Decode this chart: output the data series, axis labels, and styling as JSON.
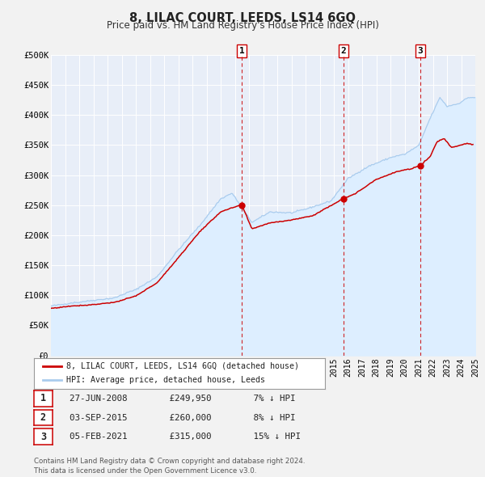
{
  "title": "8, LILAC COURT, LEEDS, LS14 6GQ",
  "subtitle": "Price paid vs. HM Land Registry's House Price Index (HPI)",
  "background_color": "#f2f2f2",
  "plot_bg_color": "#e8eef8",
  "grid_color": "#ffffff",
  "ylim": [
    0,
    500000
  ],
  "yticks": [
    0,
    50000,
    100000,
    150000,
    200000,
    250000,
    300000,
    350000,
    400000,
    450000,
    500000
  ],
  "ytick_labels": [
    "£0",
    "£50K",
    "£100K",
    "£150K",
    "£200K",
    "£250K",
    "£300K",
    "£350K",
    "£400K",
    "£450K",
    "£500K"
  ],
  "xmin": 1995,
  "xmax": 2025,
  "sale_color": "#cc0000",
  "hpi_color": "#aaccee",
  "hpi_fill_color": "#ddeeff",
  "sale_label": "8, LILAC COURT, LEEDS, LS14 6GQ (detached house)",
  "hpi_label": "HPI: Average price, detached house, Leeds",
  "transactions": [
    {
      "date_x": 2008.49,
      "price": 249950,
      "label": "1",
      "pct": "7% ↓ HPI",
      "display_date": "27-JUN-2008",
      "display_price": "£249,950"
    },
    {
      "date_x": 2015.67,
      "price": 260000,
      "label": "2",
      "pct": "8% ↓ HPI",
      "display_date": "03-SEP-2015",
      "display_price": "£260,000"
    },
    {
      "date_x": 2021.1,
      "price": 315000,
      "label": "3",
      "pct": "15% ↓ HPI",
      "display_date": "05-FEB-2021",
      "display_price": "£315,000"
    }
  ],
  "footer": "Contains HM Land Registry data © Crown copyright and database right 2024.\nThis data is licensed under the Open Government Licence v3.0.",
  "legend_box_color": "#ffffff",
  "legend_border_color": "#999999",
  "table_border_color": "#cc0000",
  "hpi_anchors_x": [
    1995.0,
    1997.0,
    1999.5,
    2001.0,
    2002.5,
    2004.0,
    2005.5,
    2007.0,
    2007.8,
    2009.2,
    2010.5,
    2012.0,
    2013.5,
    2014.8,
    2016.0,
    2017.5,
    2019.0,
    2020.0,
    2021.0,
    2021.8,
    2022.5,
    2023.0,
    2023.8,
    2024.5,
    2025.0
  ],
  "hpi_anchors_y": [
    82000,
    88000,
    95000,
    108000,
    130000,
    175000,
    215000,
    260000,
    270000,
    222000,
    240000,
    238000,
    248000,
    258000,
    295000,
    315000,
    330000,
    335000,
    350000,
    395000,
    430000,
    415000,
    420000,
    430000,
    430000
  ],
  "sale_anchors_x": [
    1995.0,
    1996.5,
    1998.0,
    1999.5,
    2001.0,
    2002.5,
    2004.0,
    2005.5,
    2007.0,
    2008.49,
    2009.2,
    2010.5,
    2012.0,
    2013.5,
    2015.67,
    2016.5,
    2018.0,
    2019.5,
    2020.5,
    2021.1,
    2021.8,
    2022.3,
    2022.8,
    2023.3,
    2023.8,
    2024.3,
    2024.8
  ],
  "sale_anchors_y": [
    78000,
    82000,
    84000,
    88000,
    98000,
    120000,
    162000,
    205000,
    238000,
    249950,
    210000,
    220000,
    225000,
    232000,
    260000,
    268000,
    292000,
    305000,
    310000,
    315000,
    330000,
    355000,
    360000,
    345000,
    348000,
    352000,
    350000
  ]
}
